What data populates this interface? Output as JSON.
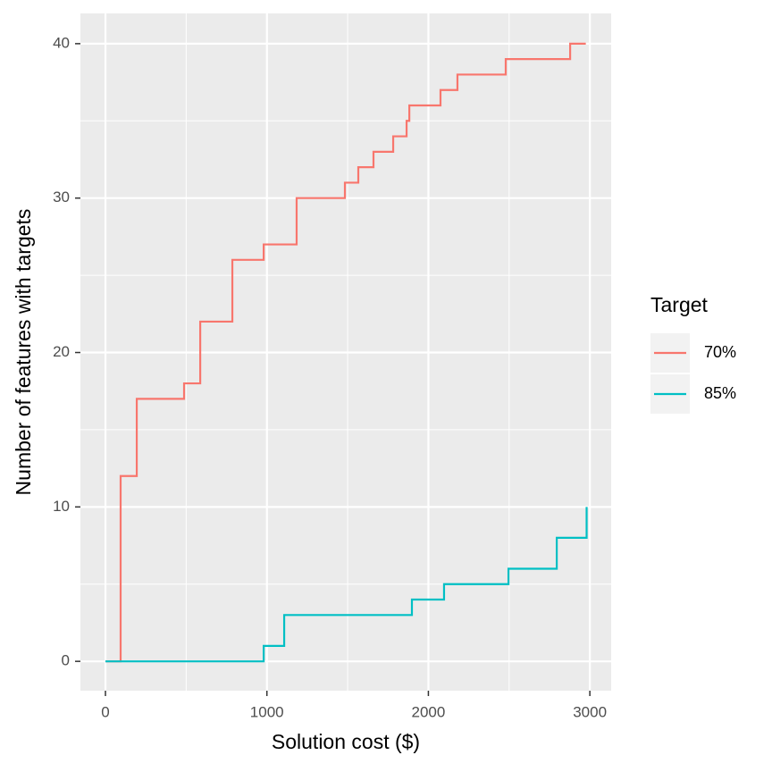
{
  "chart_data": {
    "type": "step",
    "x_label": "Solution cost ($)",
    "y_label": "Number of features with targets",
    "legend_title": "Target",
    "legend_position": "right",
    "grid": true,
    "xlim": [
      -155,
      3132
    ],
    "ylim": [
      -1.9,
      41.96
    ],
    "xticks": [
      0,
      1000,
      2000,
      3000
    ],
    "yticks": [
      0,
      10,
      20,
      30,
      40
    ],
    "x_minor_ticks": [
      500,
      1500,
      2500
    ],
    "y_minor_ticks": [
      5,
      15,
      25,
      35
    ],
    "series": [
      {
        "name": "70%",
        "color": "#f8766d",
        "x": [
          0,
          94,
          194,
          487,
          587,
          786,
          980,
          1184,
          1483,
          1566,
          1660,
          1782,
          1865,
          1882,
          2075,
          2180,
          2479,
          2878,
          2975
        ],
        "values": [
          0,
          12,
          17,
          18,
          22,
          26,
          27,
          30,
          31,
          32,
          33,
          34,
          35,
          36,
          37,
          38,
          39,
          40,
          40
        ]
      },
      {
        "name": "85%",
        "color": "#00bfc4",
        "x": [
          0,
          980,
          1107,
          1898,
          2097,
          2496,
          2795,
          2980
        ],
        "values": [
          0,
          1,
          3,
          4,
          5,
          6,
          8,
          10
        ]
      }
    ]
  }
}
